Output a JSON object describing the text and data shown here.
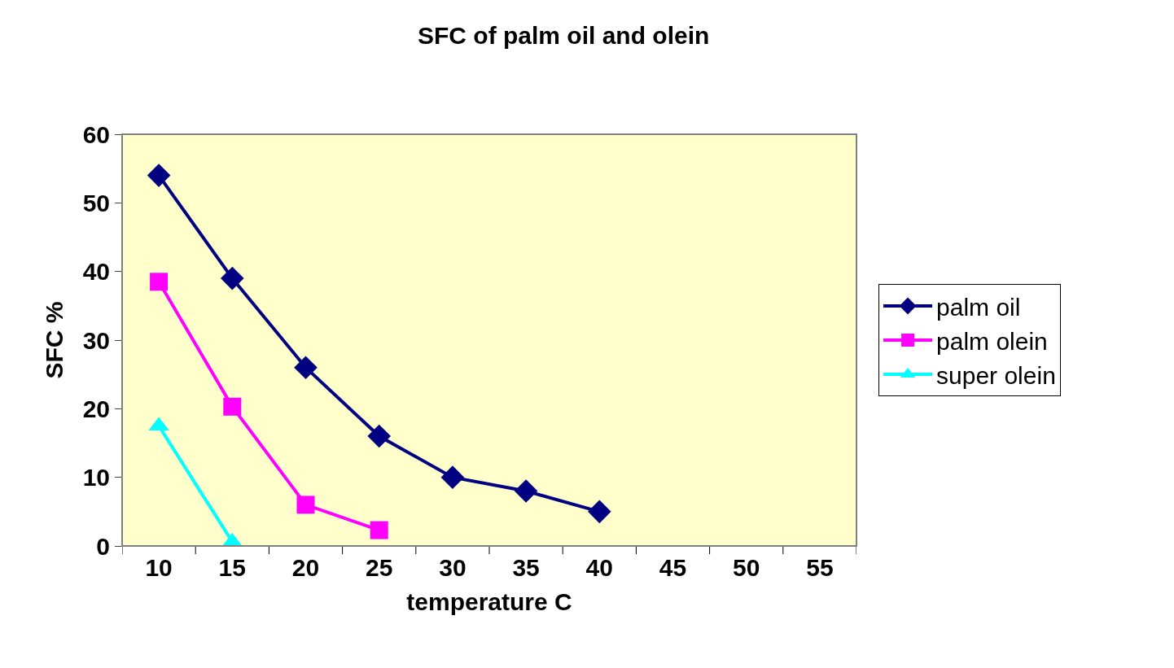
{
  "chart_data": {
    "type": "line",
    "title": "SFC of palm oil and olein",
    "xlabel": "temperature C",
    "ylabel": "SFC %",
    "categories": [
      "10",
      "15",
      "20",
      "25",
      "30",
      "35",
      "40",
      "45",
      "50",
      "55"
    ],
    "series": [
      {
        "name": "palm oil",
        "color": "#000080",
        "marker": "diamond",
        "values": [
          54,
          39,
          26,
          16,
          10,
          8,
          5,
          null,
          null,
          null
        ]
      },
      {
        "name": "palm olein",
        "color": "#ff00ff",
        "marker": "square",
        "values": [
          38.5,
          20.3,
          6,
          2.3,
          null,
          null,
          null,
          null,
          null,
          null
        ]
      },
      {
        "name": "super olein",
        "color": "#00ffff",
        "marker": "triangle",
        "values": [
          17.5,
          0.6,
          null,
          null,
          null,
          null,
          null,
          null,
          null,
          null
        ]
      }
    ],
    "ylim": [
      0,
      60
    ],
    "yticks": [
      0,
      10,
      20,
      30,
      40,
      50,
      60
    ],
    "grid": false,
    "legend": "right",
    "line_style": "solid"
  }
}
